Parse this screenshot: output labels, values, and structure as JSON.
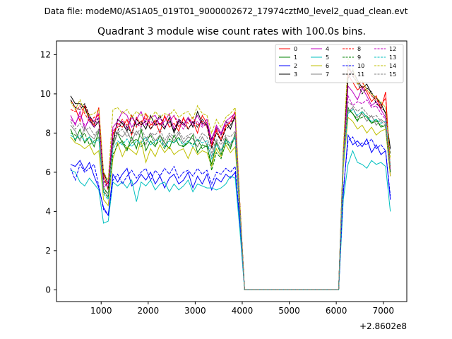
{
  "chart_data": {
    "type": "line",
    "suptitle": "Data file: modeM0/AS1A05_019T01_9000002672_17974cztM0_level2_quad_clean.evt",
    "title": "Quadrant 3 module wise count rates with 100.0s bins.",
    "xlabel": "",
    "ylabel": "",
    "x_offset_label": "+2.8602e8",
    "x_ticks": [
      1000,
      2000,
      3000,
      4000,
      5000,
      6000,
      7000
    ],
    "y_ticks": [
      0,
      2,
      4,
      6,
      8,
      10,
      12
    ],
    "xlim": [
      50,
      7500
    ],
    "ylim": [
      -0.6,
      12.7
    ],
    "grid": false,
    "legend_position": "top-right",
    "x": [
      350,
      450,
      550,
      650,
      750,
      850,
      950,
      1050,
      1150,
      1250,
      1350,
      1450,
      1550,
      1650,
      1750,
      1850,
      1950,
      2050,
      2150,
      2250,
      2350,
      2450,
      2550,
      2650,
      2750,
      2850,
      2950,
      3050,
      3150,
      3250,
      3350,
      3450,
      3550,
      3650,
      3750,
      3850,
      3950,
      4050,
      4150,
      5000,
      6050,
      6150,
      6250,
      6350,
      6450,
      6550,
      6650,
      6750,
      6850,
      6950,
      7050,
      7150
    ],
    "series": [
      {
        "name": "0",
        "color": "#ff0000",
        "dash": false,
        "values": [
          9.7,
          9.3,
          8.6,
          9.4,
          8.8,
          8.4,
          9.3,
          5.9,
          5.1,
          7.9,
          8.5,
          8.3,
          8.7,
          7.9,
          8.8,
          8.4,
          9.0,
          8.4,
          8.6,
          8.0,
          8.9,
          8.3,
          8.5,
          8.1,
          8.8,
          8.2,
          8.6,
          8.0,
          8.9,
          8.5,
          7.3,
          8.2,
          7.6,
          8.3,
          8.6,
          9.1,
          4.3,
          0.0,
          0.0,
          0.0,
          0.0,
          6.9,
          11.0,
          10.6,
          10.2,
          10.4,
          10.1,
          9.6,
          9.9,
          9.2,
          10.1,
          6.0
        ]
      },
      {
        "name": "1",
        "color": "#008000",
        "dash": false,
        "values": [
          8.2,
          7.6,
          8.2,
          7.5,
          7.8,
          7.3,
          8.1,
          5.2,
          4.9,
          7.4,
          8.0,
          7.5,
          7.1,
          7.8,
          7.2,
          8.2,
          7.1,
          7.6,
          7.3,
          7.9,
          7.5,
          7.2,
          7.9,
          7.4,
          7.3,
          7.5,
          7.9,
          7.0,
          7.4,
          7.3,
          6.4,
          7.5,
          6.9,
          7.7,
          7.2,
          8.0,
          4.0,
          0.0,
          0.0,
          0.0,
          0.0,
          7.1,
          9.2,
          9.0,
          8.6,
          9.1,
          8.8,
          8.5,
          8.7,
          8.3,
          8.4,
          6.1
        ]
      },
      {
        "name": "2",
        "color": "#0000ff",
        "dash": false,
        "values": [
          6.4,
          6.3,
          6.6,
          6.1,
          6.5,
          5.8,
          5.2,
          4.2,
          3.8,
          5.9,
          5.5,
          5.9,
          6.2,
          5.3,
          5.5,
          5.9,
          5.6,
          6.0,
          5.4,
          5.8,
          5.2,
          5.7,
          5.9,
          5.4,
          5.6,
          6.0,
          5.2,
          5.8,
          5.4,
          5.9,
          5.1,
          5.7,
          5.5,
          5.9,
          5.7,
          6.0,
          3.4,
          0.0,
          0.0,
          0.0,
          0.0,
          4.9,
          7.9,
          7.4,
          7.6,
          7.3,
          7.7,
          7.0,
          7.4,
          6.9,
          7.1,
          4.6
        ]
      },
      {
        "name": "3",
        "color": "#000000",
        "dash": false,
        "values": [
          9.9,
          9.5,
          9.5,
          9.3,
          8.7,
          8.3,
          8.6,
          6.0,
          5.4,
          7.5,
          8.7,
          8.5,
          8.1,
          8.9,
          8.4,
          8.6,
          8.2,
          8.9,
          8.4,
          8.5,
          8.2,
          8.8,
          8.0,
          8.6,
          8.4,
          8.8,
          8.3,
          9.1,
          8.5,
          8.4,
          7.7,
          8.3,
          7.9,
          8.6,
          8.2,
          8.9,
          4.2,
          0.0,
          0.0,
          0.0,
          0.0,
          6.4,
          10.8,
          11.2,
          10.7,
          10.3,
          10.5,
          10.0,
          9.8,
          9.5,
          9.0,
          7.2
        ]
      },
      {
        "name": "4",
        "color": "#bf00bf",
        "dash": false,
        "values": [
          8.9,
          8.4,
          9.1,
          8.2,
          8.8,
          8.6,
          9.0,
          5.2,
          5.5,
          8.3,
          8.6,
          9.1,
          8.9,
          8.3,
          8.7,
          9.1,
          8.4,
          8.8,
          8.9,
          8.4,
          8.6,
          9.0,
          8.2,
          8.7,
          8.4,
          8.8,
          8.5,
          8.9,
          8.4,
          8.7,
          7.6,
          8.4,
          8.0,
          8.6,
          8.8,
          9.0,
          4.1,
          0.0,
          0.0,
          0.0,
          0.0,
          6.7,
          10.4,
          10.1,
          9.7,
          10.3,
          9.9,
          9.4,
          9.6,
          9.2,
          8.8,
          5.8
        ]
      },
      {
        "name": "5",
        "color": "#00bfbf",
        "dash": false,
        "values": [
          6.1,
          6.0,
          5.5,
          5.3,
          5.7,
          5.4,
          5.1,
          3.4,
          3.5,
          5.5,
          5.3,
          5.5,
          5.2,
          5.6,
          4.5,
          5.5,
          5.3,
          5.6,
          5.1,
          5.4,
          5.5,
          5.0,
          5.4,
          5.1,
          5.3,
          5.6,
          5.0,
          5.4,
          5.3,
          5.2,
          5.2,
          5.1,
          5.2,
          5.4,
          5.8,
          5.7,
          3.0,
          0.0,
          0.0,
          0.0,
          0.0,
          4.6,
          6.4,
          7.1,
          6.5,
          6.4,
          6.2,
          6.6,
          6.4,
          6.5,
          6.3,
          4.0
        ]
      },
      {
        "name": "6",
        "color": "#bfbf00",
        "dash": false,
        "values": [
          7.8,
          7.5,
          7.4,
          7.2,
          7.4,
          6.9,
          7.1,
          4.6,
          4.3,
          6.7,
          7.5,
          6.8,
          7.3,
          7.1,
          6.9,
          7.6,
          6.5,
          7.2,
          6.8,
          7.4,
          7.0,
          7.3,
          6.9,
          7.1,
          7.2,
          6.7,
          7.3,
          6.9,
          7.1,
          7.0,
          6.3,
          7.2,
          6.8,
          7.4,
          7.0,
          7.3,
          3.8,
          0.0,
          0.0,
          0.0,
          0.0,
          6.2,
          8.8,
          8.6,
          8.2,
          8.4,
          8.0,
          8.3,
          7.9,
          8.1,
          8.2,
          5.8
        ]
      },
      {
        "name": "7",
        "color": "#808080",
        "dash": false,
        "values": [
          8.4,
          8.1,
          7.6,
          8.3,
          7.9,
          7.7,
          8.2,
          5.0,
          4.8,
          7.3,
          8.0,
          7.8,
          8.1,
          7.6,
          8.1,
          7.8,
          7.4,
          8.0,
          7.6,
          7.9,
          7.3,
          7.9,
          7.6,
          8.0,
          7.5,
          7.8,
          7.7,
          7.3,
          7.8,
          7.4,
          6.8,
          7.6,
          7.1,
          7.8,
          7.4,
          7.9,
          3.9,
          0.0,
          0.0,
          0.0,
          0.0,
          6.6,
          9.1,
          9.3,
          8.8,
          9.0,
          8.6,
          8.9,
          8.4,
          8.7,
          8.5,
          6.3
        ]
      },
      {
        "name": "8",
        "color": "#ff0000",
        "dash": true,
        "values": [
          9.2,
          9.1,
          9.4,
          9.0,
          8.6,
          8.8,
          8.9,
          5.7,
          5.4,
          8.0,
          8.3,
          8.7,
          8.4,
          8.9,
          8.3,
          8.6,
          8.8,
          8.2,
          8.7,
          8.4,
          8.8,
          8.6,
          8.9,
          8.3,
          8.7,
          8.5,
          8.8,
          8.4,
          8.6,
          8.3,
          7.4,
          8.1,
          7.7,
          8.4,
          8.5,
          8.9,
          4.4,
          0.0,
          0.0,
          0.0,
          0.0,
          7.0,
          11.3,
          11.0,
          10.5,
          10.6,
          10.2,
          9.9,
          9.7,
          9.4,
          9.8,
          6.2
        ]
      },
      {
        "name": "9",
        "color": "#008000",
        "dash": true,
        "values": [
          8.0,
          7.9,
          7.7,
          8.0,
          7.4,
          7.6,
          7.8,
          5.0,
          4.7,
          6.9,
          7.4,
          7.6,
          7.2,
          7.5,
          7.7,
          7.3,
          7.6,
          7.9,
          7.4,
          7.6,
          7.2,
          7.7,
          7.5,
          7.8,
          7.3,
          7.6,
          7.4,
          7.7,
          7.2,
          7.4,
          6.1,
          7.0,
          6.7,
          7.5,
          7.3,
          7.8,
          3.9,
          0.0,
          0.0,
          0.0,
          0.0,
          6.8,
          9.3,
          9.0,
          8.7,
          8.8,
          8.9,
          8.5,
          8.6,
          8.4,
          8.3,
          6.0
        ]
      },
      {
        "name": "10",
        "color": "#0000ff",
        "dash": true,
        "values": [
          6.2,
          5.6,
          6.4,
          6.0,
          6.2,
          6.4,
          5.3,
          4.1,
          3.8,
          5.6,
          5.9,
          5.4,
          5.8,
          6.1,
          5.7,
          6.0,
          6.2,
          5.6,
          6.1,
          5.8,
          6.2,
          5.9,
          6.3,
          5.7,
          6.0,
          6.1,
          5.8,
          6.2,
          5.9,
          6.1,
          5.4,
          6.0,
          5.9,
          6.2,
          6.0,
          6.3,
          3.5,
          0.0,
          0.0,
          0.0,
          0.0,
          5.1,
          7.6,
          7.8,
          7.3,
          7.5,
          7.4,
          7.7,
          7.2,
          7.4,
          7.1,
          4.8
        ]
      },
      {
        "name": "11",
        "color": "#000000",
        "dash": true,
        "values": [
          9.7,
          9.3,
          9.2,
          9.5,
          8.9,
          8.5,
          8.8,
          5.6,
          5.2,
          7.7,
          8.1,
          8.6,
          8.3,
          8.0,
          8.7,
          8.4,
          8.6,
          8.2,
          8.5,
          8.9,
          8.3,
          8.6,
          8.1,
          8.7,
          8.5,
          8.2,
          8.6,
          8.3,
          8.7,
          8.4,
          7.2,
          8.0,
          7.6,
          8.2,
          8.4,
          8.8,
          4.3,
          0.0,
          0.0,
          0.0,
          0.0,
          6.8,
          11.5,
          10.9,
          10.6,
          10.0,
          10.3,
          10.1,
          9.5,
          9.3,
          9.1,
          6.9
        ]
      },
      {
        "name": "12",
        "color": "#bf00bf",
        "dash": true,
        "values": [
          8.7,
          8.5,
          8.9,
          8.4,
          8.6,
          8.3,
          8.8,
          5.4,
          5.3,
          8.1,
          8.4,
          8.6,
          8.2,
          8.8,
          8.5,
          8.3,
          8.7,
          8.6,
          8.4,
          8.8,
          8.3,
          8.6,
          8.9,
          8.5,
          8.2,
          8.7,
          8.4,
          8.6,
          8.3,
          8.5,
          7.5,
          8.3,
          7.9,
          8.5,
          8.6,
          8.9,
          4.2,
          0.0,
          0.0,
          0.0,
          0.0,
          6.9,
          9.9,
          9.4,
          9.6,
          9.5,
          9.7,
          9.3,
          9.4,
          9.0,
          8.7,
          6.1
        ]
      },
      {
        "name": "13",
        "color": "#00bfbf",
        "dash": true,
        "values": [
          7.9,
          7.7,
          7.9,
          7.6,
          7.8,
          7.5,
          7.7,
          4.9,
          4.6,
          7.2,
          7.6,
          7.4,
          7.7,
          7.3,
          7.6,
          7.5,
          7.8,
          7.4,
          7.6,
          7.7,
          7.3,
          7.6,
          7.5,
          7.7,
          7.4,
          7.6,
          7.3,
          7.7,
          7.5,
          7.6,
          6.7,
          7.4,
          7.1,
          7.6,
          7.5,
          7.8,
          3.9,
          0.0,
          0.0,
          0.0,
          0.0,
          6.5,
          9.0,
          9.2,
          8.9,
          9.1,
          8.8,
          8.6,
          8.7,
          8.5,
          8.6,
          6.3
        ]
      },
      {
        "name": "14",
        "color": "#bfbf00",
        "dash": true,
        "values": [
          9.6,
          9.2,
          9.7,
          9.1,
          8.9,
          9.0,
          9.2,
          6.0,
          5.6,
          9.2,
          9.3,
          9.0,
          9.2,
          8.8,
          9.1,
          8.9,
          9.0,
          8.7,
          9.1,
          8.8,
          9.0,
          8.9,
          9.2,
          8.8,
          9.0,
          9.1,
          8.7,
          9.4,
          9.0,
          8.9,
          8.0,
          8.7,
          8.3,
          8.8,
          9.0,
          9.3,
          4.4,
          0.0,
          0.0,
          0.0,
          0.0,
          7.2,
          11.8,
          11.3,
          10.5,
          10.7,
          10.2,
          10.0,
          9.8,
          9.6,
          9.3,
          6.7
        ]
      },
      {
        "name": "15",
        "color": "#808080",
        "dash": true,
        "values": [
          8.6,
          8.2,
          8.5,
          8.1,
          8.3,
          7.9,
          8.2,
          5.1,
          4.9,
          7.6,
          8.0,
          8.2,
          7.8,
          8.1,
          7.9,
          8.3,
          7.7,
          8.0,
          7.9,
          8.2,
          7.6,
          8.0,
          7.8,
          8.1,
          7.7,
          7.9,
          8.0,
          7.6,
          8.0,
          7.8,
          7.0,
          7.7,
          7.4,
          7.9,
          7.8,
          8.1,
          4.0,
          0.0,
          0.0,
          0.0,
          0.0,
          6.7,
          9.6,
          9.4,
          9.1,
          9.3,
          9.0,
          8.8,
          8.9,
          8.6,
          8.4,
          6.2
        ]
      }
    ]
  }
}
